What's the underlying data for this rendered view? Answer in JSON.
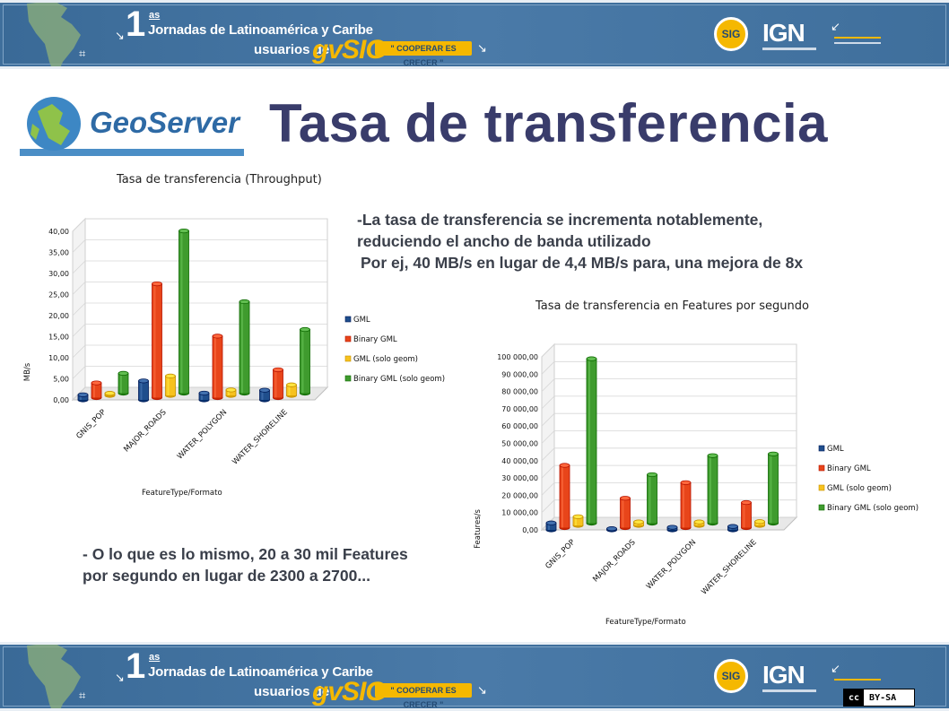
{
  "banner": {
    "number": "1",
    "superscript": "as",
    "line1": "Jornadas de Latinoamérica y Caribe",
    "line2": "usuarios de",
    "brand": "gvSIG",
    "slogan": "\" COOPERAR ES CRECER \"",
    "badge": "SIG",
    "ign": "IGN",
    "license": "BY-SA",
    "license_cc": "cc"
  },
  "header": {
    "logo_text": "GeoServer",
    "title": "Tasa de transferencia"
  },
  "notes": {
    "line1": "-La tasa de transferencia se incrementa notablemente,",
    "line2": "reduciendo el ancho de banda utilizado",
    "line3": "Por ej, 40 MB/s en lugar de 4,4 MB/s para, una mejora de 8x",
    "bottom1": "- O lo que es lo mismo, 20 a 30 mil Features",
    "bottom2": "por segundo en lugar de 2300 a 2700..."
  },
  "colors": {
    "GML": "#1f4e8c",
    "Binary GML": "#e8451a",
    "GML (solo geom)": "#f7c21e",
    "Binary GML (solo geom)": "#3f9b2e",
    "title": "#393c6b",
    "banner": "#3f6f9c",
    "accent": "#f5b800"
  },
  "chart_data": [
    {
      "type": "bar",
      "title": "Tasa de transferencia (Throughput)",
      "xlabel": "FeatureType/Formato",
      "ylabel": "MB/s",
      "categories": [
        "GNIS_POP",
        "MAJOR_ROADS",
        "WATER_POLYGON",
        "WATER_SHORELINE"
      ],
      "ylim": [
        0,
        40
      ],
      "yticks": [
        "0,00",
        "5,00",
        "10,00",
        "15,00",
        "20,00",
        "25,00",
        "30,00",
        "35,00",
        "40,00"
      ],
      "legend_position": "right",
      "series": [
        {
          "name": "GML",
          "values": [
            1.2,
            4.5,
            1.6,
            2.3
          ]
        },
        {
          "name": "Binary GML",
          "values": [
            3.5,
            27,
            14.6,
            6.6
          ]
        },
        {
          "name": "GML (solo geom)",
          "values": [
            0.5,
            4.6,
            1.3,
            2.5
          ]
        },
        {
          "name": "Binary GML (solo geom)",
          "values": [
            4.7,
            38.5,
            21.7,
            15.1
          ]
        }
      ]
    },
    {
      "type": "bar",
      "title": "Tasa de transferencia en Features por segundo",
      "xlabel": "FeatureType/Formato",
      "ylabel": "Features/s",
      "categories": [
        "GNIS_POP",
        "MAJOR_ROADS",
        "WATER_POLYGON",
        "WATER_SHORELINE"
      ],
      "ylim": [
        0,
        100000
      ],
      "yticks": [
        "0,00",
        "10 000,00",
        "20 000,00",
        "30 000,00",
        "40 000,00",
        "50 000,00",
        "60 000,00",
        "70 000,00",
        "80 000,00",
        "90 000,00",
        "100 000,00"
      ],
      "legend_position": "right",
      "series": [
        {
          "name": "GML",
          "values": [
            4000,
            700,
            1500,
            2000
          ]
        },
        {
          "name": "Binary GML",
          "values": [
            36000,
            17000,
            26000,
            14500
          ]
        },
        {
          "name": "GML (solo geom)",
          "values": [
            5000,
            2000,
            2000,
            2200
          ]
        },
        {
          "name": "Binary GML (solo geom)",
          "values": [
            95000,
            28000,
            39000,
            40000
          ]
        }
      ]
    }
  ]
}
